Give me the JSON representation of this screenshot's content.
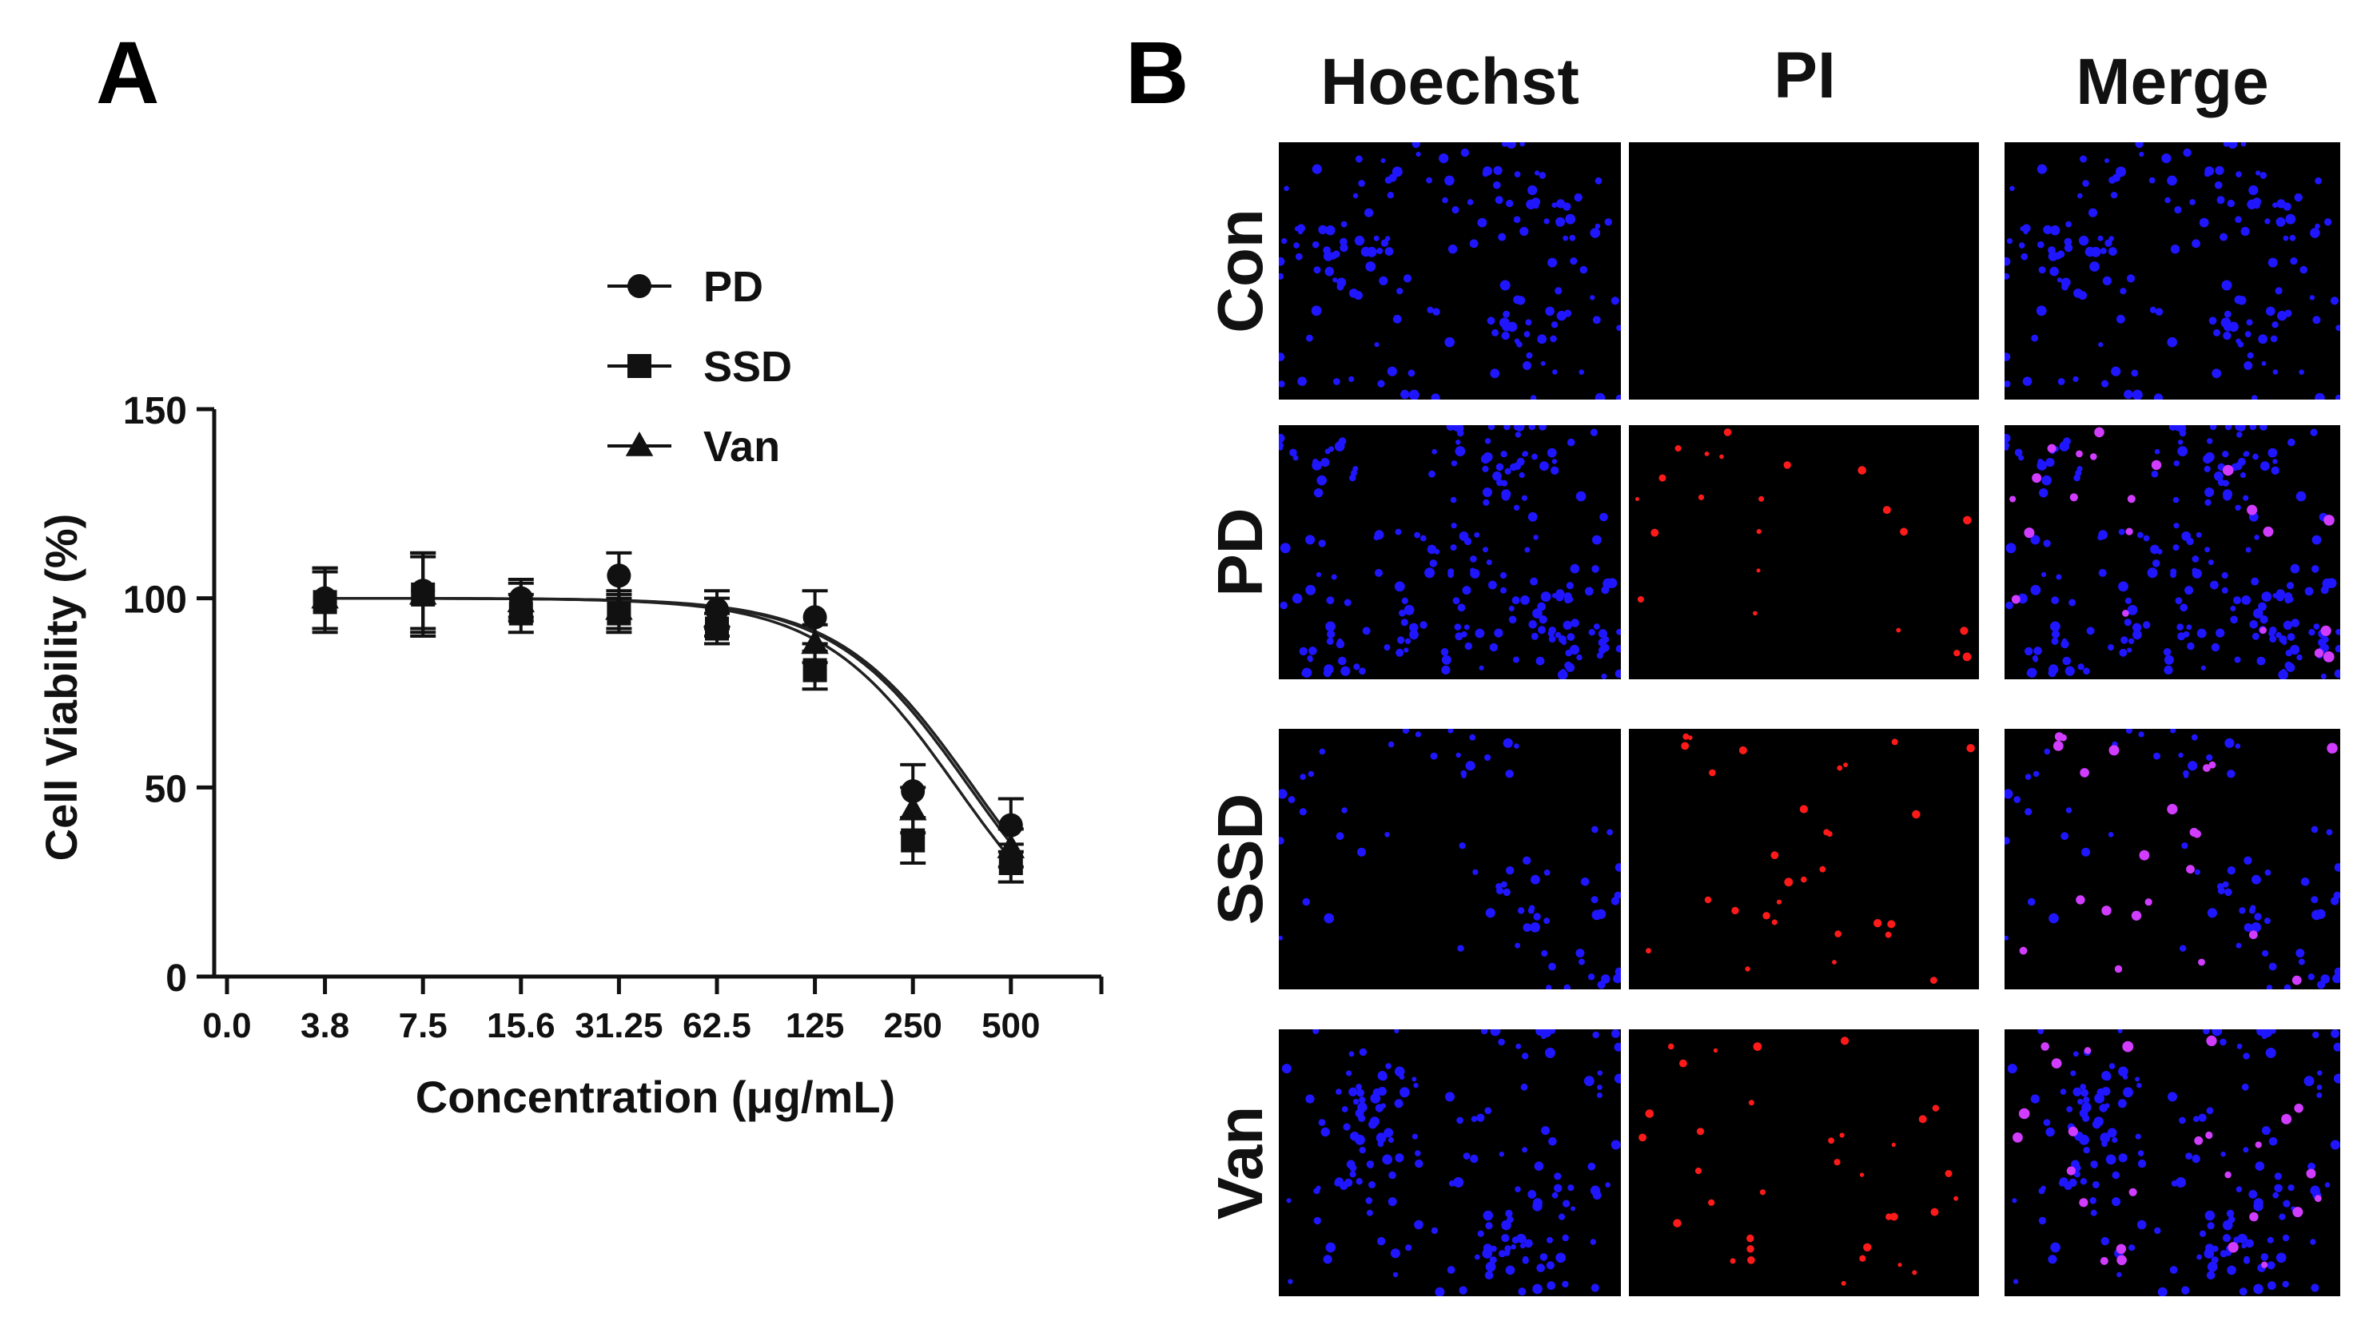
{
  "figure": {
    "panel_a_letter": "A",
    "panel_b_letter": "B"
  },
  "chart_data": {
    "type": "scatter",
    "xlabel": "Concentration (μg/mL)",
    "ylabel": "Cell Viability (%)",
    "categories": [
      "0.0",
      "3.8",
      "7.5",
      "15.6",
      "31.25",
      "62.5",
      "125",
      "250",
      "500"
    ],
    "ylim": [
      0,
      150
    ],
    "yticks": [
      "0",
      "50",
      "100",
      "150"
    ],
    "legend": {
      "position": "top-center"
    },
    "series": [
      {
        "name": "PD",
        "marker": "circle",
        "values": [
          null,
          100,
          102,
          100,
          106,
          97,
          95,
          49,
          40
        ],
        "errors": [
          null,
          8,
          10,
          5,
          6,
          5,
          7,
          7,
          7
        ],
        "fit_midpoint_index": 7.62,
        "fit_slope": 1.45
      },
      {
        "name": "SSD",
        "marker": "square",
        "values": [
          null,
          99,
          101,
          96,
          96,
          92,
          81,
          36,
          30
        ],
        "errors": [
          null,
          8,
          10,
          5,
          5,
          4,
          5,
          6,
          5
        ],
        "fit_midpoint_index": 7.45,
        "fit_slope": 1.45
      },
      {
        "name": "Van",
        "marker": "triangle",
        "values": [
          null,
          100,
          101,
          99,
          97,
          95,
          88,
          44,
          34
        ],
        "errors": [
          null,
          8,
          11,
          5,
          5,
          5,
          5,
          6,
          5
        ],
        "fit_midpoint_index": 7.58,
        "fit_slope": 1.45
      }
    ]
  },
  "microscopy": {
    "columns": [
      "Hoechst",
      "PI",
      "Merge"
    ],
    "rows": [
      "Con",
      "PD",
      "SSD",
      "Van"
    ],
    "colors": {
      "hoechst": "#1f16ff",
      "pi": "#ff1a1a",
      "merge_overlap": "#d23cff",
      "background": "#000000"
    }
  }
}
